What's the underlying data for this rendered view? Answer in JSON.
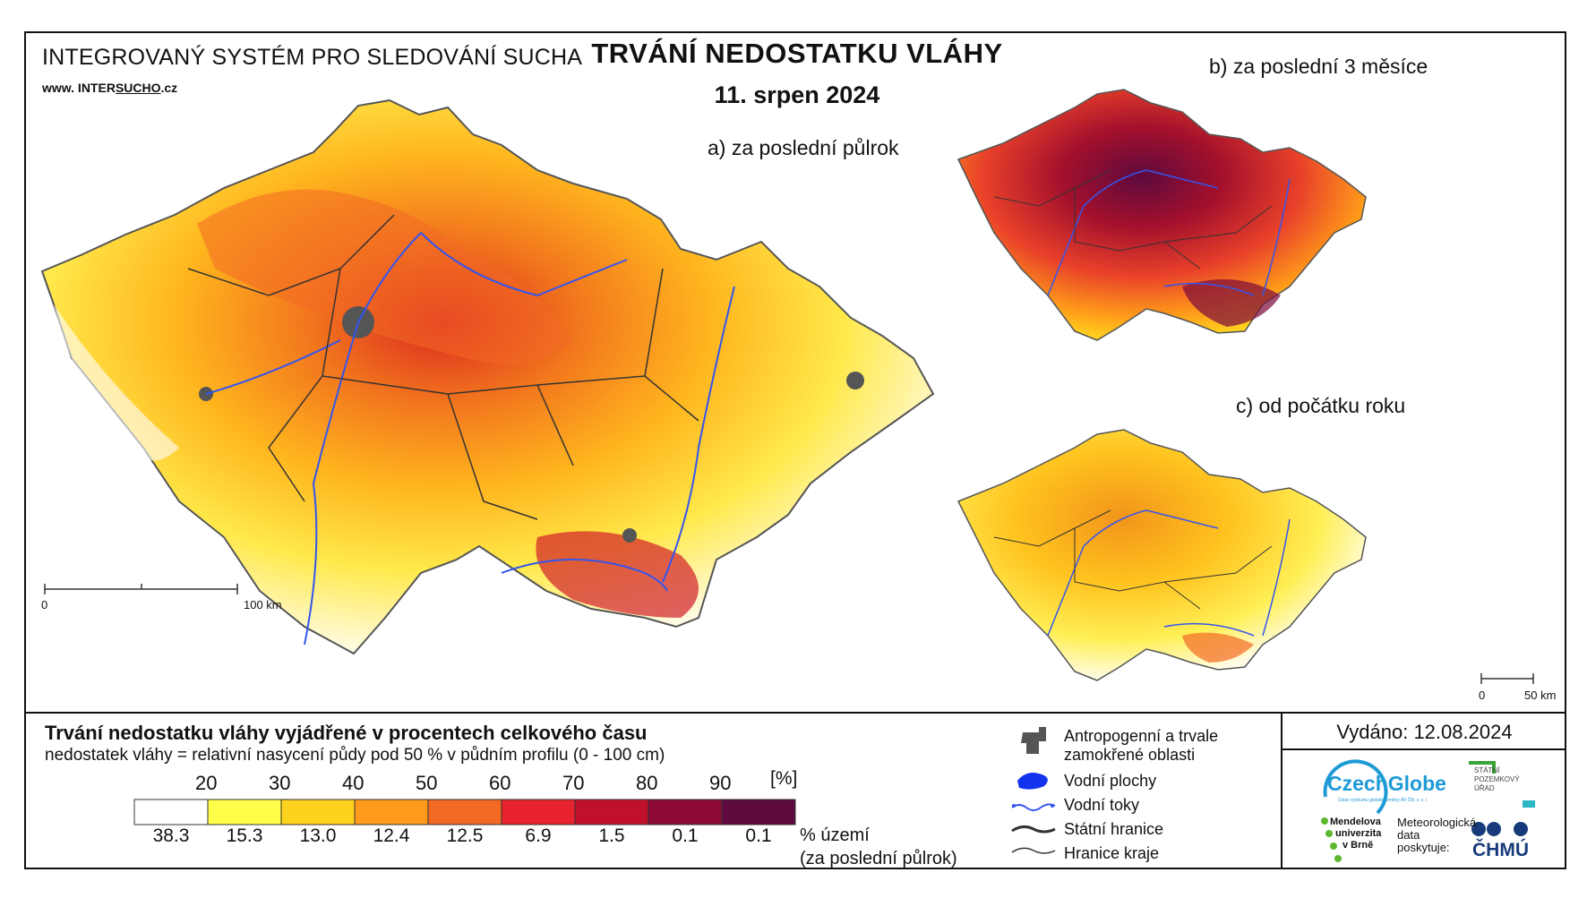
{
  "header": {
    "system_title": "INTEGROVANÝ SYSTÉM PRO SLEDOVÁNÍ SUCHA",
    "url_prefix": "www. INTER",
    "url_underlined": "SUCHO",
    "url_suffix": ".cz",
    "title": "TRVÁNÍ NEDOSTATKU VLÁHY",
    "date": "11. srpen 2024"
  },
  "maps": {
    "a_label": "a) za poslední půlrok",
    "b_label": "b) za poslední 3 měsíce",
    "c_label": "c) od počátku roku",
    "main_scale": {
      "start": "0",
      "end": "100 km"
    },
    "small_scale": {
      "start": "0",
      "end": "50 km"
    }
  },
  "legend": {
    "title": "Trvání nedostatku vláhy vyjádřené v procentech celkového času",
    "subtitle": "nedostatek vláhy = relativní nasycení půdy pod 50 % v půdním profilu (0 - 100 cm)",
    "thresholds": [
      "20",
      "30",
      "40",
      "50",
      "60",
      "70",
      "80",
      "90"
    ],
    "unit": "[%]",
    "colors": [
      "#ffffff",
      "#ffff4a",
      "#ffd21e",
      "#ff9a1a",
      "#f26a24",
      "#e8232e",
      "#c0102c",
      "#8e0a36",
      "#5e0a3e"
    ],
    "percent_share": [
      "38.3",
      "15.3",
      "13.0",
      "12.4",
      "12.5",
      "6.9",
      "1.5",
      "0.1",
      "0.1"
    ],
    "share_label_1": "% území",
    "share_label_2": "(za poslední půlrok)"
  },
  "symbols": {
    "anthropogenic_1": "Antropogenní a trvale",
    "anthropogenic_2": "zamokřené oblasti",
    "water_bodies": "Vodní plochy",
    "rivers": "Vodní toky",
    "state_border": "Státní hranice",
    "region_border": "Hranice kraje",
    "colors": {
      "anthropogenic": "#555555",
      "water": "#1133ee",
      "river": "#3355ee",
      "border": "#333333"
    }
  },
  "issued": "Vydáno: 12.08.2024",
  "logos": {
    "czechglobe": "CzechGlobe",
    "czechglobe_sub": "Ústav výzkumu globální změny AV ČR, v. v. i.",
    "spu_1": "STÁTNÍ",
    "spu_2": "POZEMKOVÝ",
    "spu_3": "ÚŘAD",
    "mendel_1": "Mendelova",
    "mendel_2": "univerzita",
    "mendel_3": "v Brně",
    "met_1": "Meteorologická",
    "met_2": "data",
    "met_3": "poskytuje:",
    "chmu": "ČHMÚ"
  }
}
